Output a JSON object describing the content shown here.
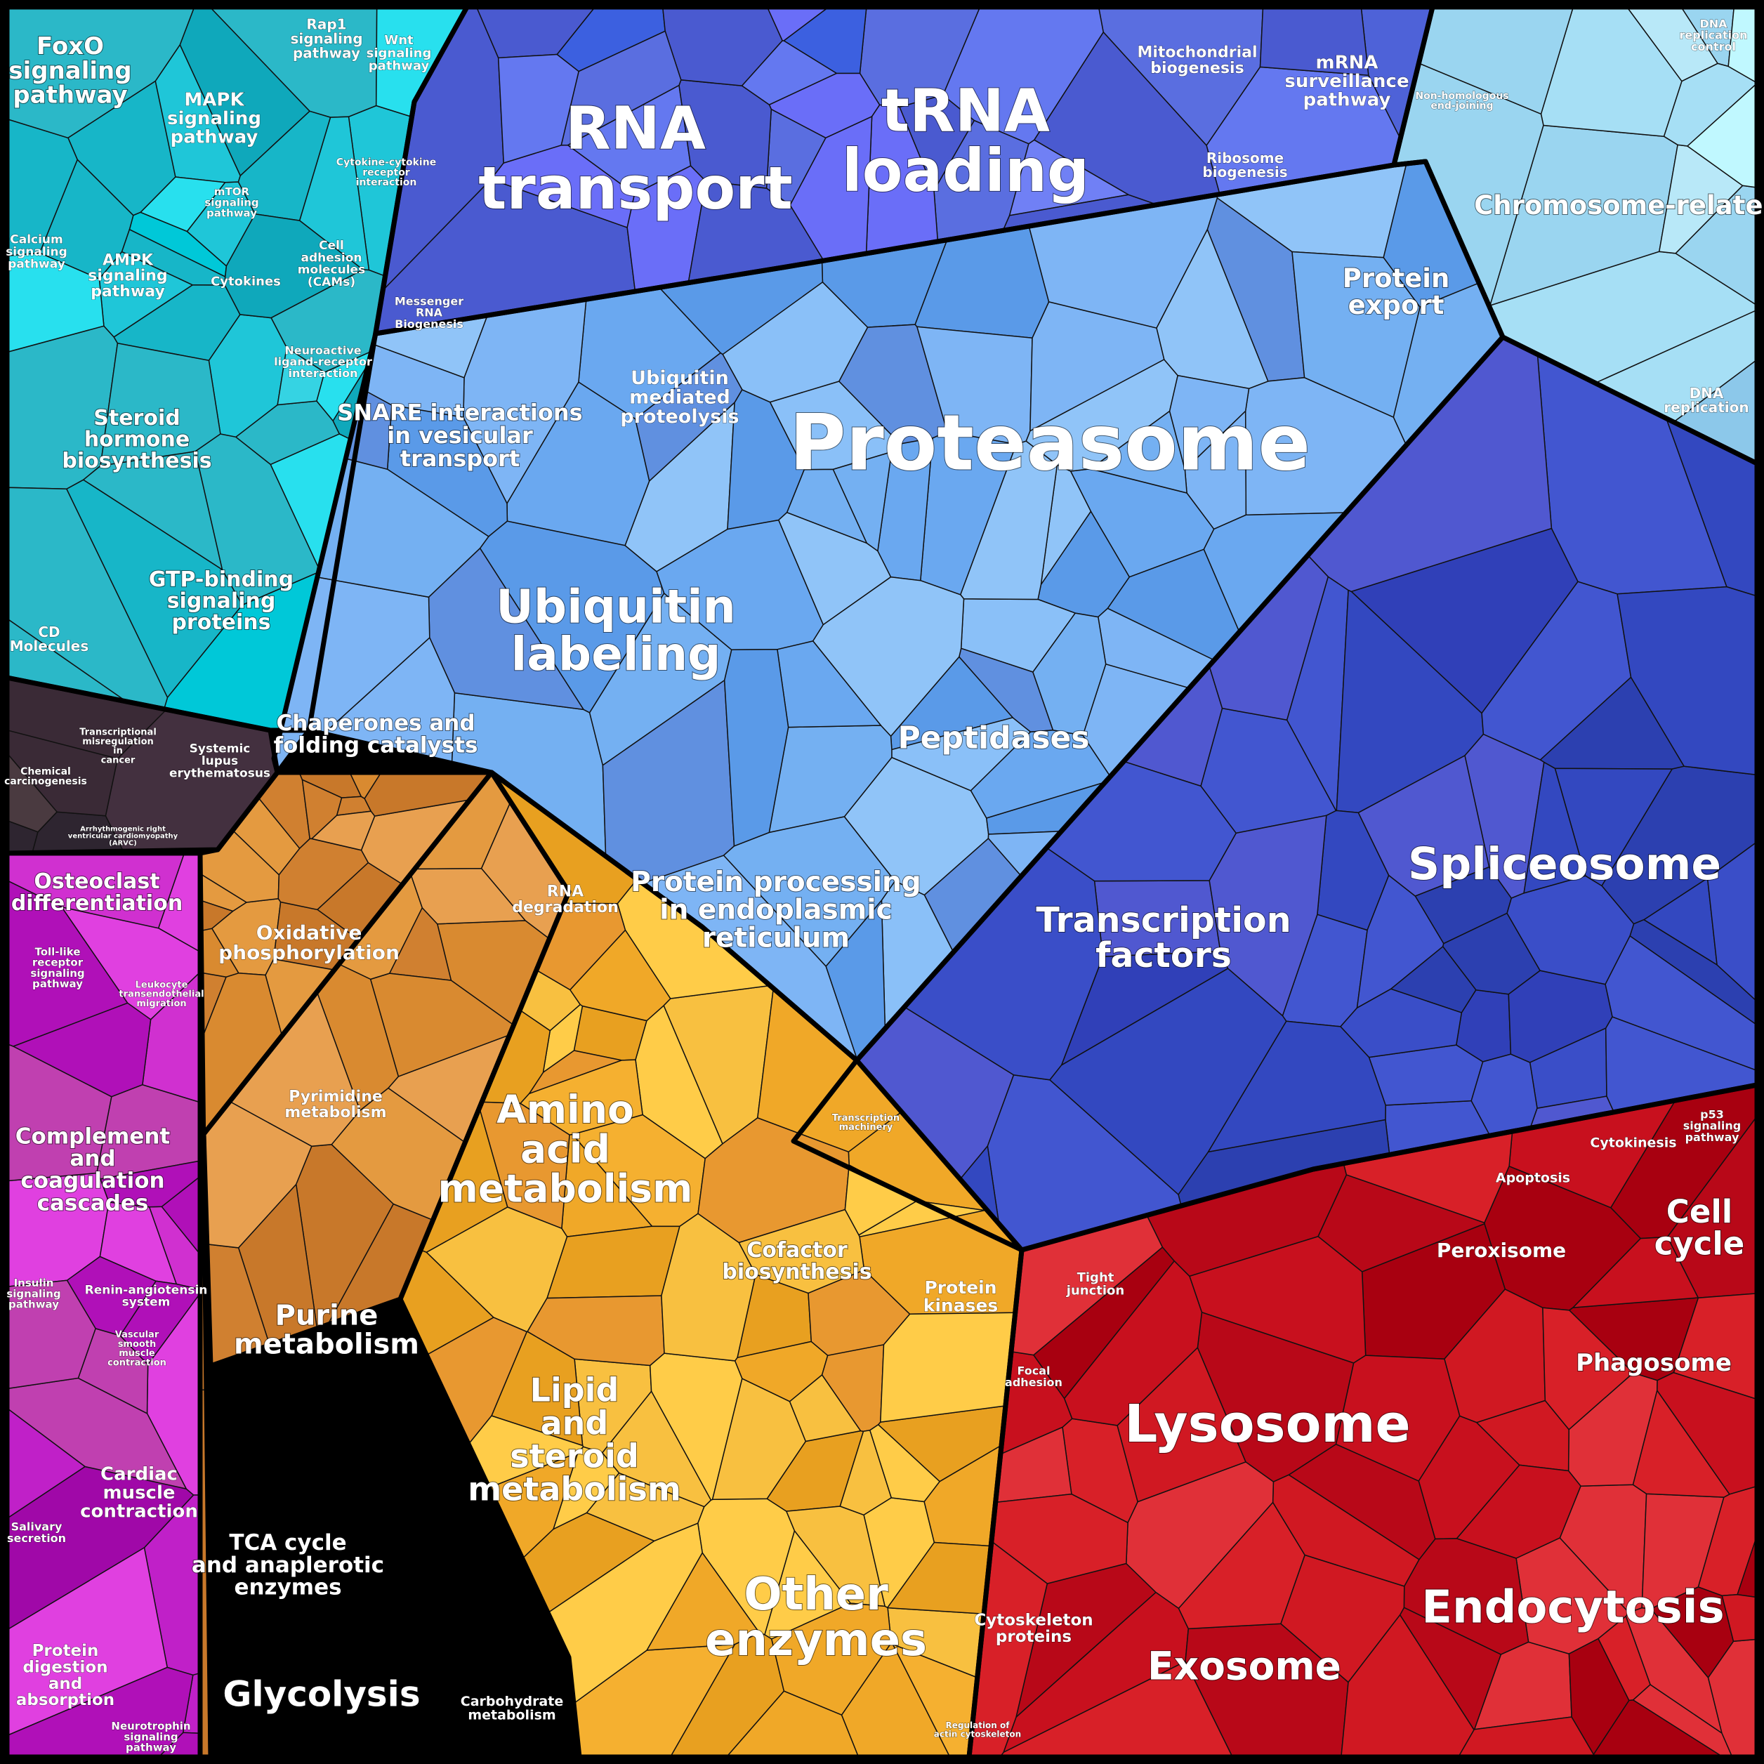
{
  "groups": [
    {
      "id": "signaling",
      "color": "#1fc6d8",
      "subcolors": [
        "#1fc6d8",
        "#17b6c8",
        "#35d3e3",
        "#0fa8bb",
        "#28e0ee",
        "#00c8d8",
        "#2bb8c8"
      ],
      "labels": {
        "foxo": "FoxO signaling pathway",
        "rap1": "Rap1 signaling pathway",
        "wnt": "Wnt signaling pathway",
        "mapk": "MAPK signaling pathway",
        "mtor": "mTOR signaling pathway",
        "cytokine_receptor": "Cytokine-cytokine receptor interaction",
        "calcium": "Calcium signaling pathway",
        "ampk": "AMPK signaling pathway",
        "cytokines": "Cytokines",
        "cams": "Cell adhesion molecules (CAMs)",
        "neuroactive": "Neuroactive ligand-receptor interaction",
        "steroid": "Steroid hormone biosynthesis",
        "gtp": "GTP-binding signaling proteins",
        "cd": "CD Molecules"
      }
    },
    {
      "id": "disease",
      "color": "#3a2a36",
      "subcolors": [
        "#3a2a36",
        "#43303f",
        "#2e2530",
        "#4a3a40"
      ],
      "labels": {
        "chemical": "Chemical carcinogenesis",
        "misregulation": "Transcriptional misregulation in cancer",
        "lupus": "Systemic lupus erythematosus",
        "arvc": "Arrhythmogenic right ventricular cardiomyopathy (ARVC)"
      }
    },
    {
      "id": "immune",
      "color": "#b010b8",
      "subcolors": [
        "#b010b8",
        "#c020c8",
        "#a008a8",
        "#d030d0",
        "#e040e0",
        "#c040b0"
      ],
      "labels": {
        "osteoclast": "Osteoclast differentiation",
        "tlr": "Toll-like receptor signaling pathway",
        "leukocyte": "Leukocyte transendothelial migration",
        "complement": "Complement and coagulation cascades",
        "insulin": "Insulin signaling pathway",
        "renin": "Renin-angiotensin system",
        "vascular": "Vascular smooth muscle contraction",
        "cardiac": "Cardiac muscle contraction",
        "salivary": "Salivary secretion",
        "digestion": "Protein digestion and absorption",
        "neurotrophin": "Neurotrophin signaling pathway"
      }
    },
    {
      "id": "rna",
      "color": "#5a6ee0",
      "subcolors": [
        "#5a6ee0",
        "#6478f0",
        "#4e62d8",
        "#7080f5",
        "#4a5ad0",
        "#6a6ef8",
        "#3c60e0"
      ],
      "labels": {
        "rna_transport": "RNA transport",
        "trna": "tRNA loading",
        "mito": "Mitochondrial biogenesis",
        "mrna": "mRNA surveillance pathway",
        "ribosome": "Ribosome biogenesis",
        "messenger": "Messenger RNA Biogenesis"
      }
    },
    {
      "id": "chromosome",
      "color": "#a6dff5",
      "subcolors": [
        "#a6dff5",
        "#b8e8f8",
        "#9ad5f0",
        "#c0f8ff",
        "#8cc8ea"
      ],
      "labels": {
        "dna_control": "DNA replication control",
        "nhej": "Non-homologous end-joining",
        "chromosome": "Chromosome-related",
        "dna_rep": "DNA replication"
      }
    },
    {
      "id": "protein",
      "color": "#7eb5f5",
      "subcolors": [
        "#7eb5f5",
        "#6aa8f0",
        "#8ac0f8",
        "#5a9ae8",
        "#74b0f2",
        "#90c4f8",
        "#6090e0"
      ],
      "labels": {
        "proteasome": "Proteasome",
        "protein_export": "Protein export",
        "snare": "SNARE interactions in vesicular transport",
        "ubiquitin_mediated": "Ubiquitin mediated proteolysis",
        "ubiquitin": "Ubiquitin labeling",
        "chaperones": "Chaperones and folding catalysts",
        "peptidases": "Peptidases",
        "rna_deg": "RNA degradation",
        "er": "Protein processing in endoplasmic reticulum"
      }
    },
    {
      "id": "transcription",
      "color": "#3348c0",
      "subcolors": [
        "#3348c0",
        "#3a4ec8",
        "#2c40b0",
        "#4256d0",
        "#3040b8",
        "#5058d0"
      ],
      "labels": {
        "tf": "Transcription factors",
        "spliceosome": "Spliceosome",
        "machinery": "Transcription machinery"
      }
    },
    {
      "id": "energy",
      "color": "#d98a30",
      "subcolors": [
        "#d98a30",
        "#e49a40",
        "#c8782a",
        "#e8a050",
        "#d08030"
      ],
      "labels": {
        "oxphos": "Oxidative phosphorylation",
        "pyrimidine": "Pyrimidine metabolism",
        "purine": "Purine metabolism",
        "tca": "TCA cycle and anaplerotic enzymes",
        "glycolysis": "Glycolysis",
        "carb": "Carbohydrate metabolism"
      }
    },
    {
      "id": "metabolism",
      "color": "#f5b030",
      "subcolors": [
        "#f5b030",
        "#f8c040",
        "#e8a020",
        "#ffcc48",
        "#f0a828",
        "#e89830"
      ],
      "labels": {
        "amino": "Amino acid metabolism",
        "cofactor": "Cofactor biosynthesis",
        "lipid": "Lipid and steroid metabolism",
        "kinases": "Protein kinases",
        "other": "Other enzymes"
      }
    },
    {
      "id": "cellular",
      "color": "#c8101e",
      "subcolors": [
        "#c8101e",
        "#b80818",
        "#d82028",
        "#a80010",
        "#e03038",
        "#d01822"
      ],
      "labels": {
        "tight": "Tight junction",
        "focal": "Focal adhesion",
        "cytoskeleton": "Cytoskeleton proteins",
        "actin": "Regulation of actin cytoskeleton",
        "lysosome": "Lysosome",
        "exosome": "Exosome",
        "endocytosis": "Endocytosis",
        "phagosome": "Phagosome",
        "peroxisome": "Peroxisome",
        "apoptosis": "Apoptosis",
        "cytokinesis": "Cytokinesis",
        "p53": "p53 signaling pathway",
        "cell_cycle": "Cell cycle"
      }
    }
  ]
}
